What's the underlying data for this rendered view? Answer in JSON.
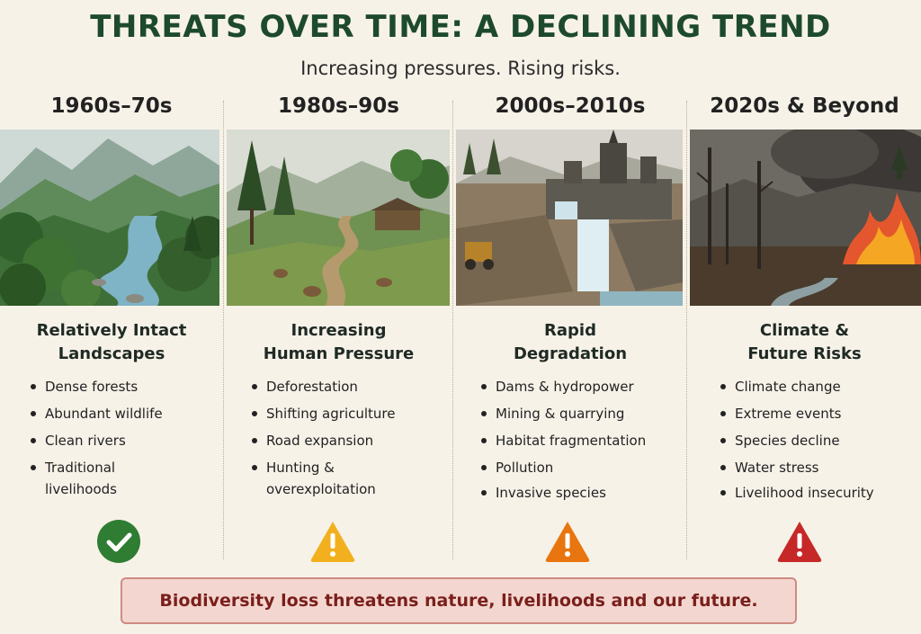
{
  "header": {
    "title": "THREATS OVER TIME: A DECLINING TREND",
    "subtitle": "Increasing pressures. Rising risks."
  },
  "columns": [
    {
      "period": "1960s–70s",
      "title_line1": "Relatively Intact",
      "title_line2": "Landscapes",
      "bullets": [
        "Dense forests",
        "Abundant wildlife",
        "Clean rivers",
        "Traditional livelihoods"
      ],
      "status": "check",
      "status_icon": "check-circle-icon",
      "status_color": "#2e7d32"
    },
    {
      "period": "1980s–90s",
      "title_line1": "Increasing",
      "title_line2": "Human Pressure",
      "bullets": [
        "Deforestation",
        "Shifting agriculture",
        "Road expansion",
        "Hunting & overexploitation"
      ],
      "status": "warning",
      "status_icon": "warning-triangle-icon",
      "status_color": "#f2b01e"
    },
    {
      "period": "2000s–2010s",
      "title_line1": "Rapid",
      "title_line2": "Degradation",
      "bullets": [
        "Dams & hydropower",
        "Mining & quarrying",
        "Habitat fragmentation",
        "Pollution",
        "Invasive species"
      ],
      "status": "warning",
      "status_icon": "warning-triangle-icon",
      "status_color": "#e8750f"
    },
    {
      "period": "2020s & Beyond",
      "title_line1": "Climate &",
      "title_line2": "Future Risks",
      "bullets": [
        "Climate change",
        "Extreme events",
        "Species decline",
        "Water stress",
        "Livelihood insecurity"
      ],
      "status": "warning",
      "status_icon": "warning-triangle-icon",
      "status_color": "#c62828"
    }
  ],
  "banner": {
    "text": "Biodiversity loss threatens nature, livelihoods and our future."
  },
  "colors": {
    "title": "#1d4a2c",
    "background": "#f7f2e8",
    "banner_bg": "#f4d6d0",
    "banner_text": "#7a1f1b"
  }
}
